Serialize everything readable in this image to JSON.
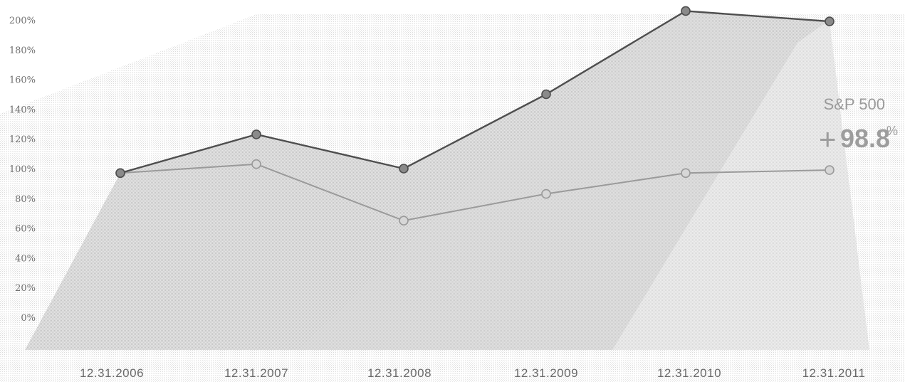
{
  "chart_data": {
    "type": "line",
    "x": [
      "12.31.2006",
      "12.31.2007",
      "12.31.2008",
      "12.31.2009",
      "12.31.2010",
      "12.31.2011"
    ],
    "yticks": [
      "0%",
      "20%",
      "40%",
      "60%",
      "80%",
      "100%",
      "120%",
      "140%",
      "160%",
      "180%",
      "200%"
    ],
    "ylim": [
      0,
      200
    ],
    "grid": false,
    "series": [
      {
        "values": [
          97,
          123,
          100,
          150,
          206,
          199
        ],
        "color": "#4e4e4e",
        "marker_fill": "#8a8a8a"
      },
      {
        "name": "S&P 500",
        "values": [
          97,
          103,
          65,
          83,
          97,
          99
        ],
        "color": "#9a9a9a",
        "marker_fill": "#d7d7d7"
      }
    ],
    "callout": {
      "series_label": "S&P 500",
      "sign": "+",
      "value": "98.8",
      "unit": "%"
    }
  }
}
